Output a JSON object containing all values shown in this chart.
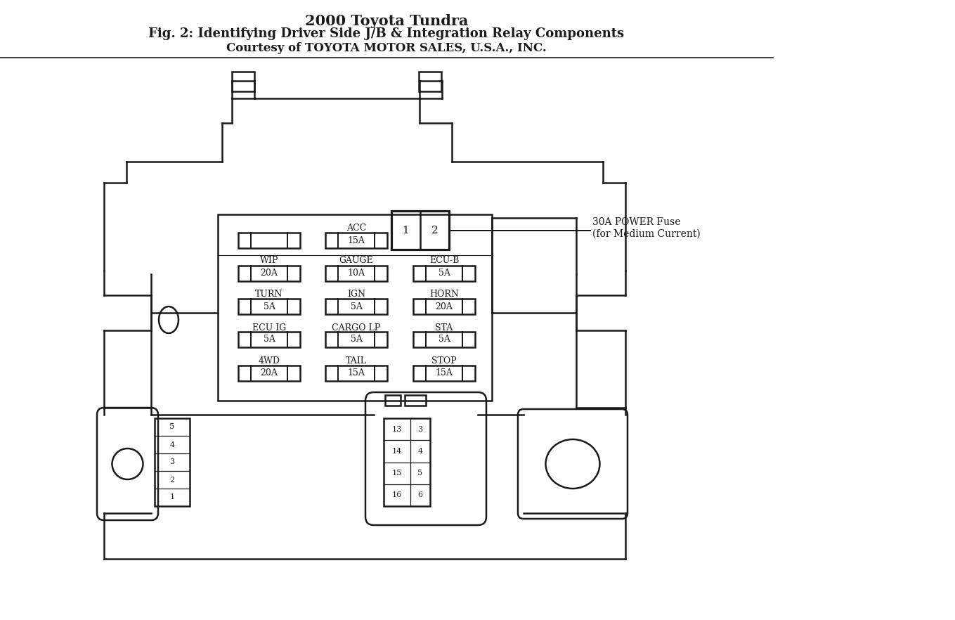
{
  "title_line1": "2000 Toyota Tundra",
  "title_line2": "Fig. 2: Identifying Driver Side J/B & Integration Relay Components",
  "title_line3": "Courtesy of TOYOTA MOTOR SALES, U.S.A., INC.",
  "bg_color": "#ffffff",
  "line_color": "#1a1a1a",
  "power_fuse_label": "30A POWER Fuse\n(for Medium Current)",
  "bottom_left_rows": [
    "1",
    "2",
    "3",
    "4",
    "5"
  ],
  "bottom_right_rows": [
    [
      "16",
      "6"
    ],
    [
      "15",
      "5"
    ],
    [
      "14",
      "4"
    ],
    [
      "13",
      "3"
    ]
  ]
}
